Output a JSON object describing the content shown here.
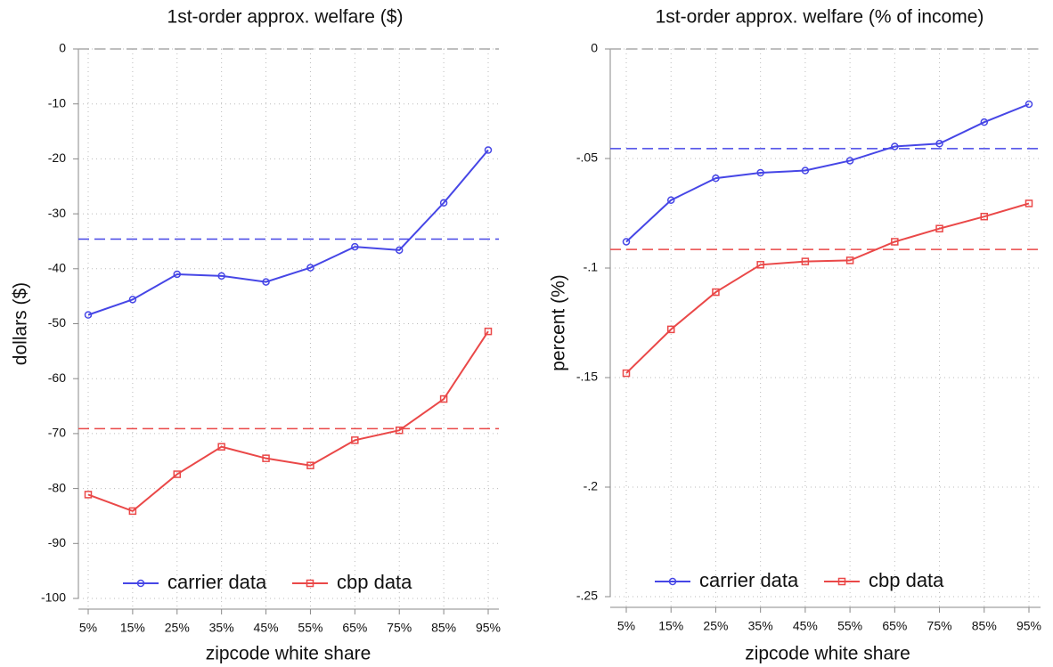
{
  "chart_data": [
    {
      "type": "line",
      "title": "1st-order approx. welfare ($)",
      "ylabel": "dollars ($)",
      "xlabel": "zipcode white share",
      "categories": [
        "5%",
        "15%",
        "25%",
        "35%",
        "45%",
        "55%",
        "65%",
        "75%",
        "85%",
        "95%"
      ],
      "series": [
        {
          "name": "carrier data",
          "color": "#4646e6",
          "marker": "circle",
          "mean": -34.6,
          "values": [
            -48.4,
            -45.6,
            -41.0,
            -41.3,
            -42.4,
            -39.8,
            -36.0,
            -36.6,
            -28.0,
            -18.4
          ]
        },
        {
          "name": "cbp data",
          "color": "#ea4848",
          "marker": "square",
          "mean": -69.1,
          "values": [
            -81.1,
            -84.1,
            -77.4,
            -72.4,
            -74.5,
            -75.8,
            -71.2,
            -69.4,
            -63.7,
            -51.4
          ]
        }
      ],
      "hlines": [
        0
      ],
      "ylim": [
        -100,
        0
      ],
      "yticks": [
        0,
        -10,
        -20,
        -30,
        -40,
        -50,
        -60,
        -70,
        -80,
        -90,
        -100
      ],
      "grid": true,
      "legend": "bottom"
    },
    {
      "type": "line",
      "title": "1st-order approx. welfare (% of income)",
      "ylabel": "percent (%)",
      "xlabel": "zipcode white share",
      "categories": [
        "5%",
        "15%",
        "25%",
        "35%",
        "45%",
        "55%",
        "65%",
        "75%",
        "85%",
        "95%"
      ],
      "series": [
        {
          "name": "carrier data",
          "color": "#4646e6",
          "marker": "circle",
          "mean": -0.0455,
          "values": [
            -0.088,
            -0.069,
            -0.059,
            -0.0565,
            -0.0555,
            -0.051,
            -0.0445,
            -0.0432,
            -0.0334,
            -0.0252
          ]
        },
        {
          "name": "cbp data",
          "color": "#ea4848",
          "marker": "square",
          "mean": -0.0915,
          "values": [
            -0.148,
            -0.128,
            -0.111,
            -0.0985,
            -0.097,
            -0.0965,
            -0.088,
            -0.082,
            -0.0765,
            -0.0705
          ]
        }
      ],
      "hlines": [
        0
      ],
      "ylim": [
        -0.25,
        0
      ],
      "yticks": [
        0,
        {
          "value": -0.05,
          "label": "-.05"
        },
        {
          "value": -0.1,
          "label": "-.1"
        },
        {
          "value": -0.15,
          "label": "-.15"
        },
        {
          "value": -0.2,
          "label": "-.2"
        },
        {
          "value": -0.25,
          "label": "-.25"
        }
      ],
      "grid": true,
      "legend": "bottom"
    }
  ]
}
